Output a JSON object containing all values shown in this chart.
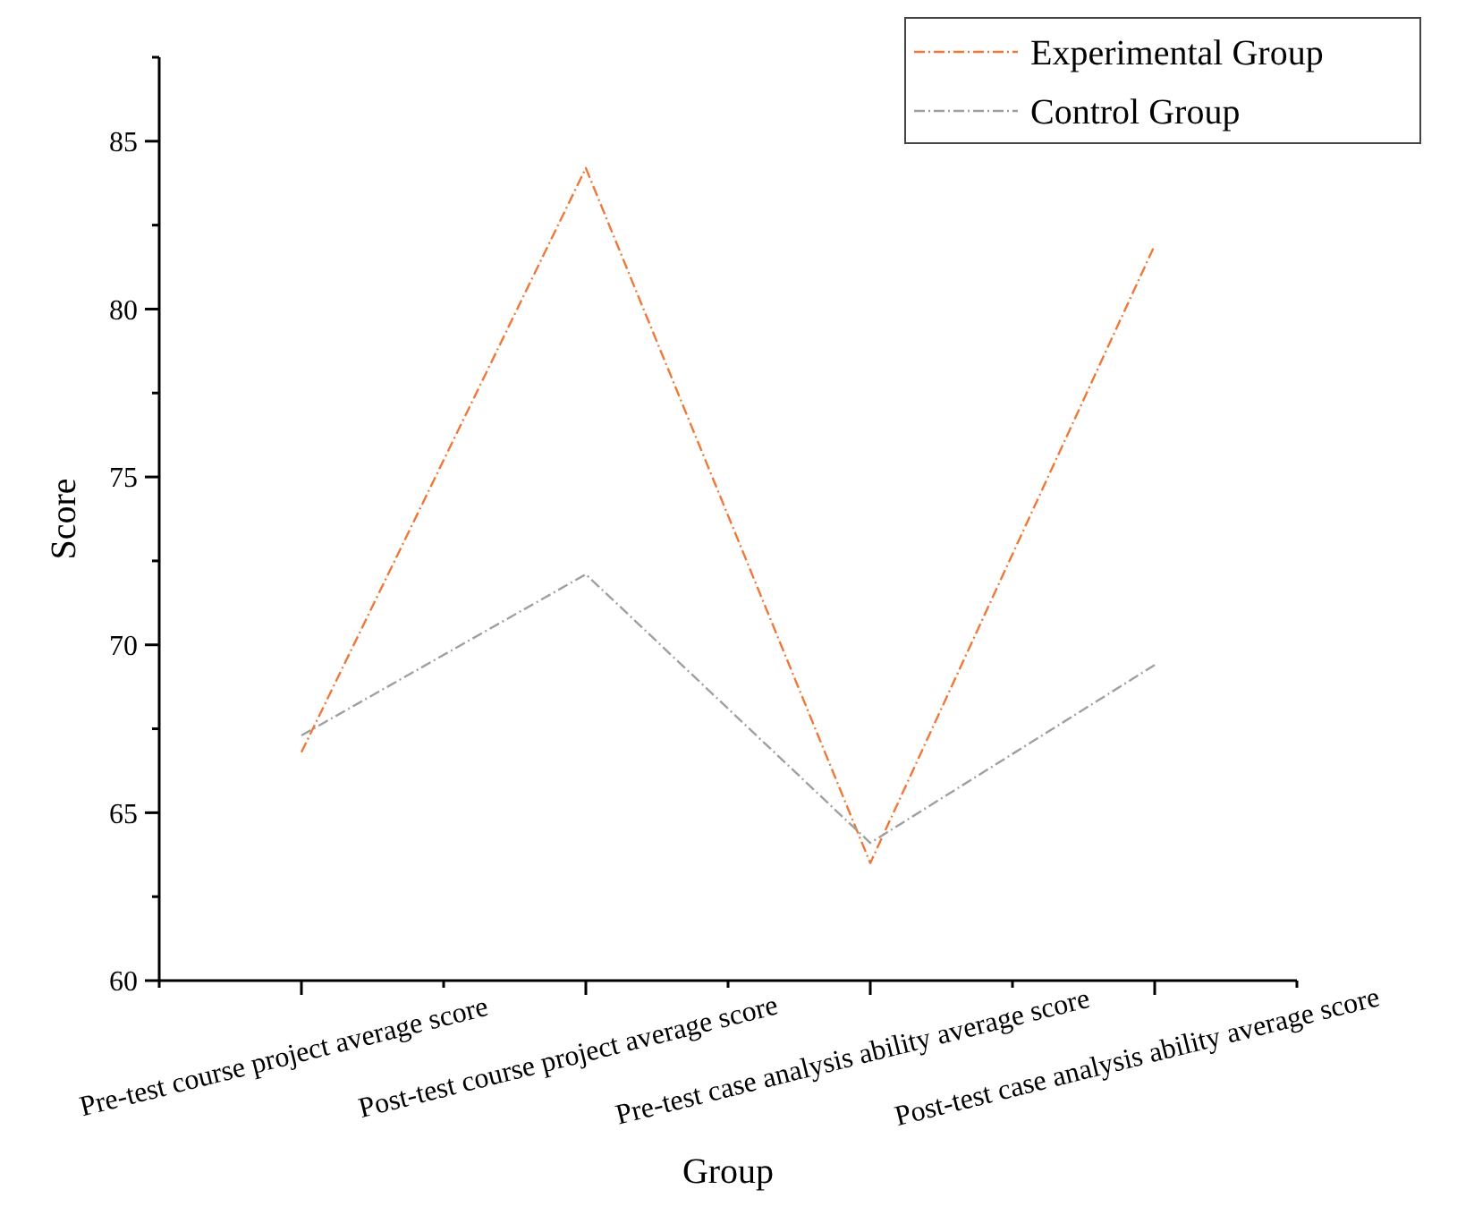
{
  "chart_data": {
    "type": "line",
    "xlabel": "Group",
    "ylabel": "Score",
    "categories": [
      "Pre-test course project average score",
      "Post-test course project average score",
      "Pre-test case analysis ability average score",
      "Post-test case analysis ability average score"
    ],
    "series": [
      {
        "name": "Experimental Group",
        "color": "#f07838",
        "values": [
          66.8,
          84.2,
          63.5,
          81.9
        ]
      },
      {
        "name": "Control Group",
        "color": "#a0a0a0",
        "values": [
          67.3,
          72.1,
          64.1,
          69.4
        ]
      }
    ],
    "ylim": [
      60,
      87.5
    ],
    "yticks": [
      60,
      {
        "value": 62.5,
        "label": null
      },
      65,
      {
        "value": 67.5,
        "label": null
      },
      70,
      {
        "value": 72.5,
        "label": null
      },
      75,
      {
        "value": 77.5,
        "label": null
      },
      80,
      {
        "value": 82.5,
        "label": null
      },
      85,
      {
        "value": 87.5,
        "label": null
      }
    ],
    "legend": "top right",
    "grid": false,
    "marker": "none",
    "line_style": "dashed"
  }
}
